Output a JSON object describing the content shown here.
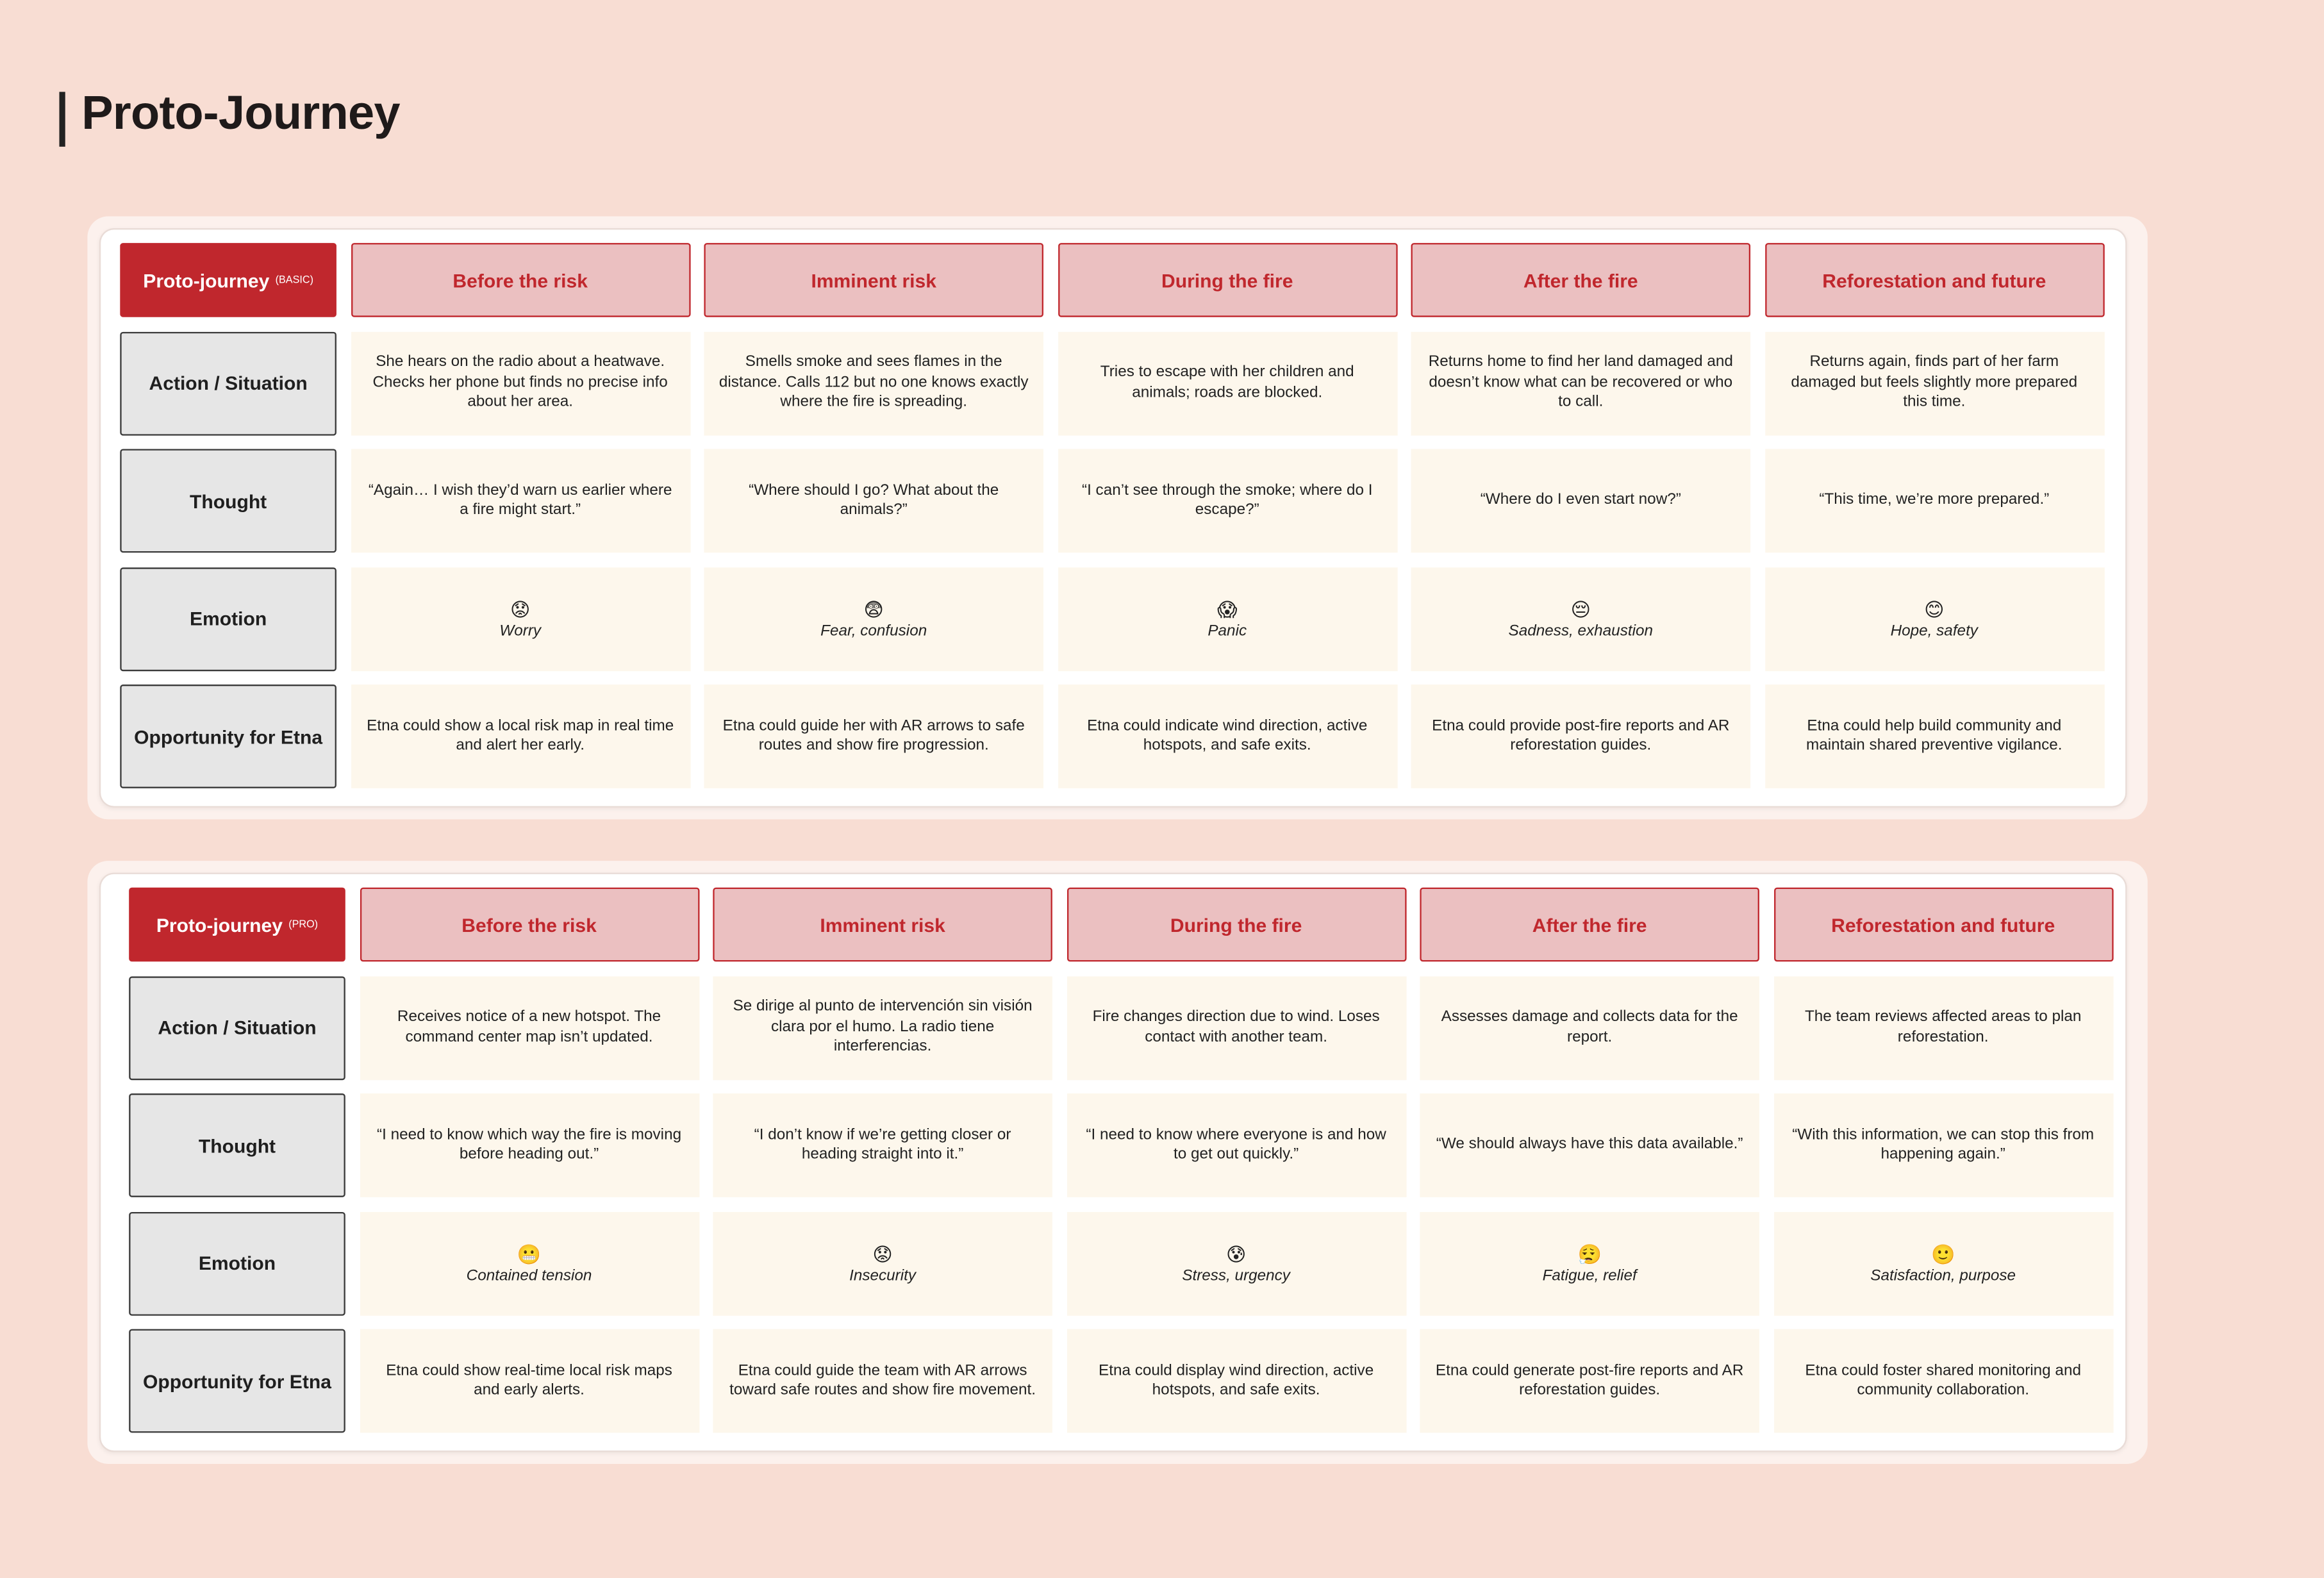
{
  "title": "Proto-Journey",
  "journeys": [
    {
      "label": "Proto-journey",
      "tag": "(BASIC)",
      "stages": [
        "Before the risk",
        "Imminent risk",
        "During the fire",
        "After the fire",
        "Reforestation and future"
      ],
      "rows": [
        {
          "label": "Action / Situation",
          "cells": [
            "She hears on the radio about a heatwave. Checks her phone but finds no precise info about her area.",
            "Smells smoke and sees flames in the distance. Calls 112 but no one knows exactly where the fire is spreading.",
            "Tries to escape with her children and animals; roads are blocked.",
            "Returns home to find her land damaged and doesn’t know what can be recovered or who to call.",
            "Returns again, finds part of her farm damaged but feels slightly more prepared this time."
          ]
        },
        {
          "label": "Thought",
          "cells": [
            "“Again… I wish they’d warn us earlier where a fire might start.”",
            "“Where should I go? What about the animals?”",
            "“I can’t see through the smoke; where do I escape?”",
            "“Where do I even start now?”",
            "“This time, we’re more prepared.”"
          ]
        },
        {
          "label": "Emotion",
          "emotions": [
            {
              "emoji": "😟",
              "text": "Worry"
            },
            {
              "emoji": "😨",
              "text": "Fear, confusion"
            },
            {
              "emoji": "😱",
              "text": "Panic"
            },
            {
              "emoji": "😔",
              "text": "Sadness, exhaustion"
            },
            {
              "emoji": "😊",
              "text": "Hope, safety"
            }
          ]
        },
        {
          "label": "Opportunity for Etna",
          "cells": [
            "Etna could show a local risk map in real time and alert her early.",
            "Etna could guide her with AR arrows to safe routes and show fire progression.",
            "Etna could indicate wind direction, active hotspots, and safe exits.",
            "Etna could provide post-fire reports and AR reforestation guides.",
            "Etna could help build community and maintain shared preventive vigilance."
          ]
        }
      ]
    },
    {
      "label": "Proto-journey",
      "tag": "(PRO)",
      "stages": [
        "Before the risk",
        "Imminent risk",
        "During the fire",
        "After the fire",
        "Reforestation and future"
      ],
      "rows": [
        {
          "label": "Action / Situation",
          "cells": [
            "Receives notice of a new hotspot. The command center map isn’t updated.",
            "Se dirige al punto de intervención sin visión clara por el humo. La radio tiene interferencias.",
            "Fire changes direction due to wind. Loses contact with another team.",
            "Assesses damage and collects data for the report.",
            "The team reviews affected areas to plan reforestation."
          ]
        },
        {
          "label": "Thought",
          "cells": [
            "“I need to know which way the fire is moving before heading out.”",
            "“I don’t know if we’re getting closer or heading straight into it.”",
            "“I need to know where everyone is and how to get out quickly.”",
            "“We should always have this data available.”",
            "“With this information, we can stop this from happening again.”"
          ]
        },
        {
          "label": "Emotion",
          "emotions": [
            {
              "emoji": "😬",
              "text": "Contained tension"
            },
            {
              "emoji": "😟",
              "text": "Insecurity"
            },
            {
              "emoji": "😰",
              "text": "Stress, urgency"
            },
            {
              "emoji": "😮‍💨",
              "text": "Fatigue, relief"
            },
            {
              "emoji": "🙂",
              "text": "Satisfaction, purpose"
            }
          ]
        },
        {
          "label": "Opportunity for Etna",
          "cells": [
            "Etna could show real-time local risk maps and early alerts.",
            "Etna could guide the team with AR arrows toward safe routes and show fire movement.",
            "Etna could display wind direction, active hotspots, and safe exits.",
            "Etna could generate post-fire reports and AR reforestation guides.",
            "Etna could foster shared monitoring and community collaboration."
          ]
        }
      ]
    }
  ]
}
